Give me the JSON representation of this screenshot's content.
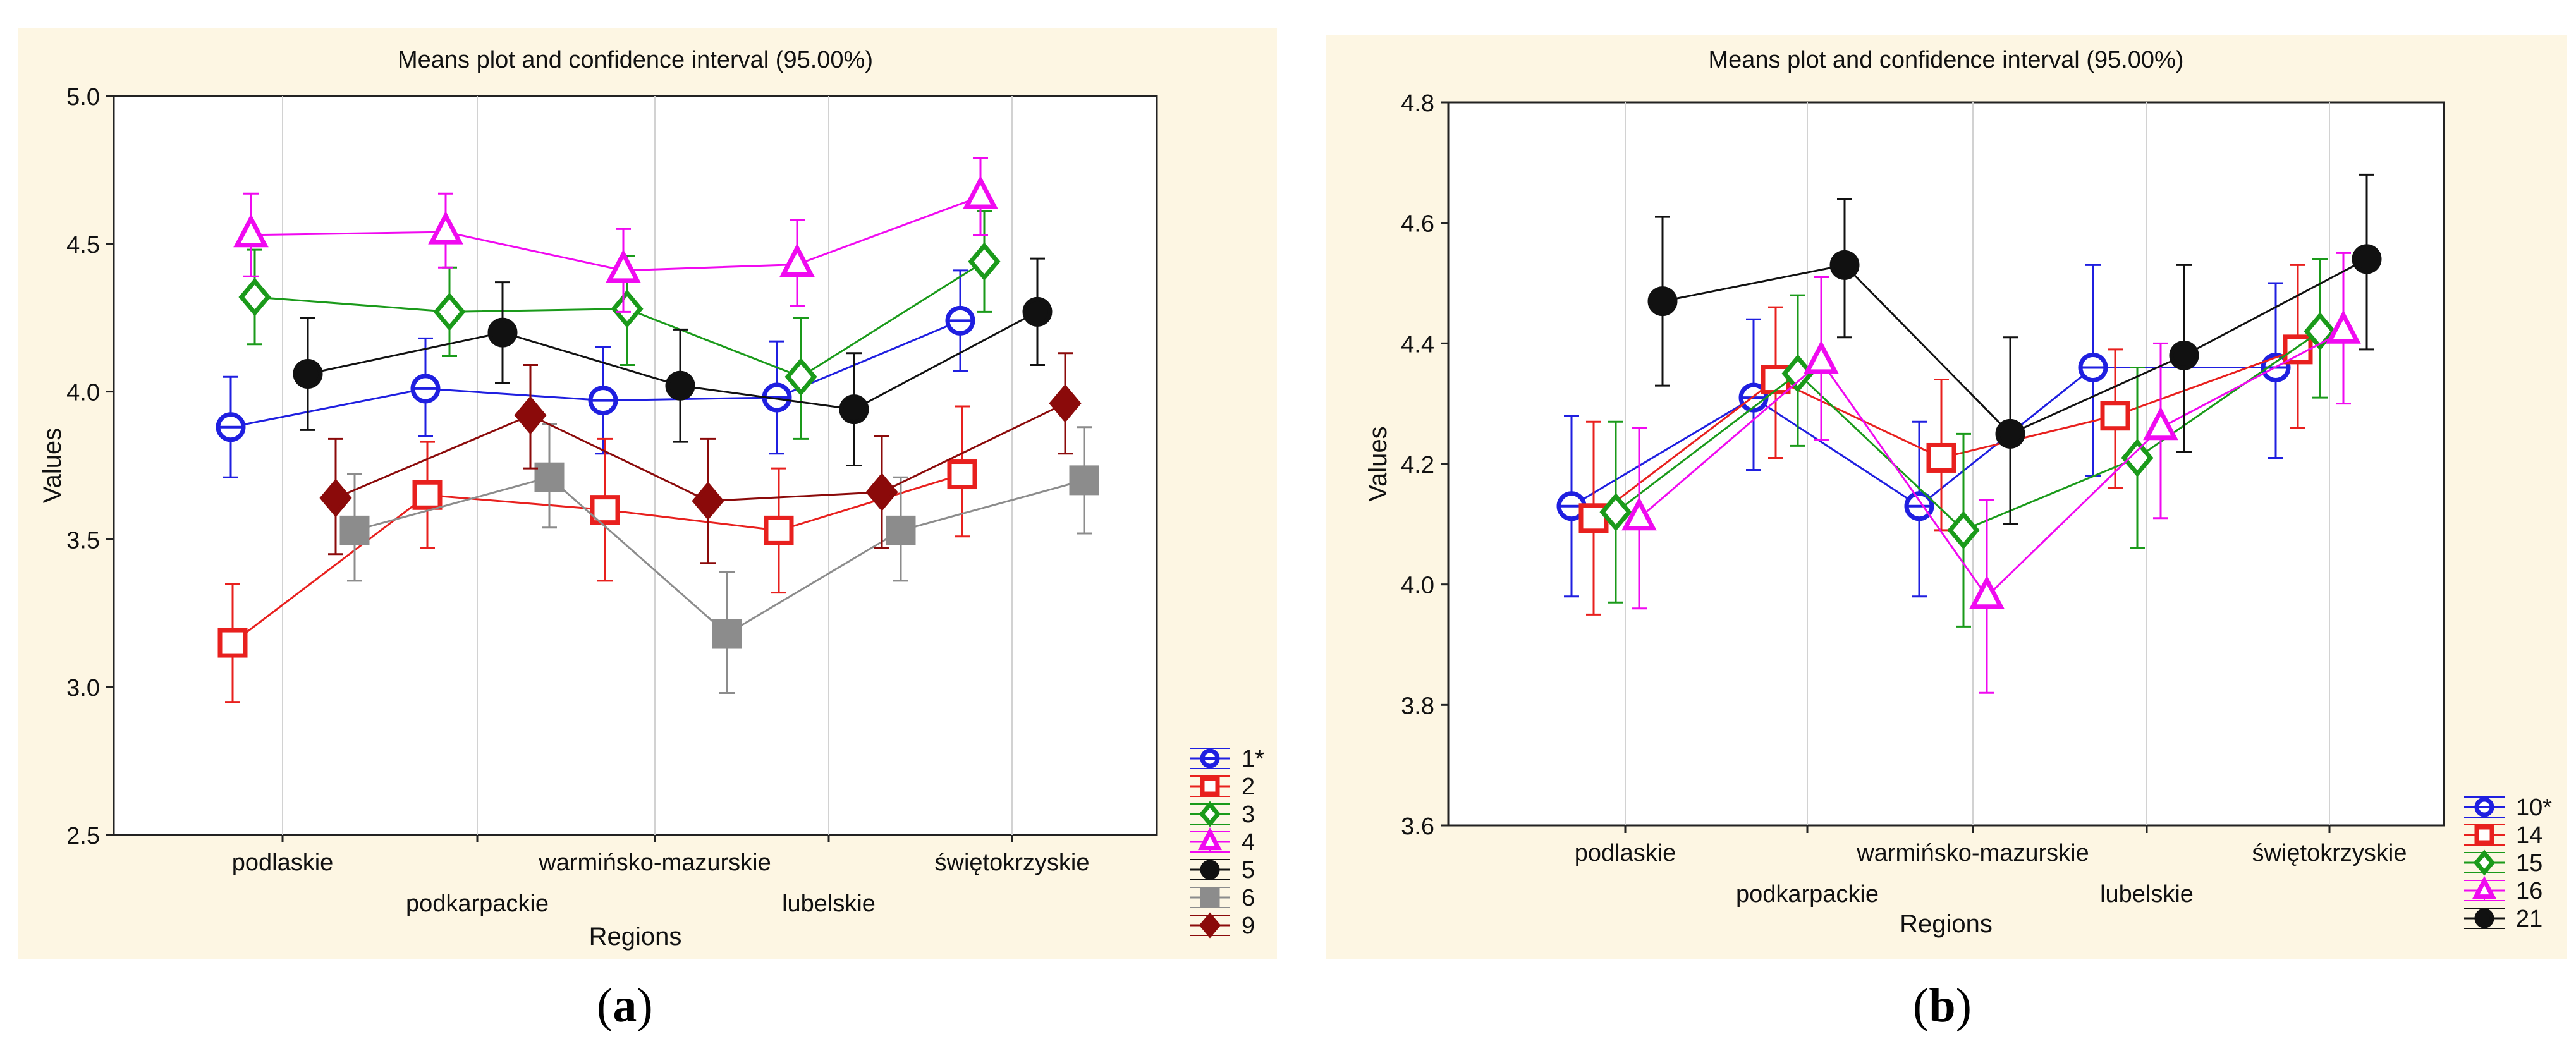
{
  "figure_labels": {
    "a": "a",
    "b": "b"
  },
  "chart_data": [
    {
      "id": "a",
      "type": "line",
      "title": "Means plot and confidence interval (95.00%)",
      "xlabel": "Regions",
      "ylabel": "Values",
      "ylim": [
        2.5,
        5.0
      ],
      "yticks": [
        "2.5",
        "3.0",
        "3.5",
        "4.0",
        "4.5",
        "5.0"
      ],
      "categories": [
        "podlaskie",
        "podkarpackie",
        "warmińsko-mazurskie",
        "lubelskie",
        "świętokrzyskie"
      ],
      "legend_position": "bottom-right",
      "series": [
        {
          "name": "1*",
          "color": "#1f1fe0",
          "marker": "circle",
          "offset": 1,
          "values": [
            3.88,
            4.01,
            3.97,
            3.98,
            4.24
          ],
          "lower": [
            3.71,
            3.85,
            3.79,
            3.79,
            4.07
          ],
          "upper": [
            4.05,
            4.18,
            4.15,
            4.17,
            4.41
          ]
        },
        {
          "name": "2",
          "color": "#e8201e",
          "marker": "square",
          "offset": 2,
          "values": [
            3.15,
            3.65,
            3.6,
            3.53,
            3.72
          ],
          "lower": [
            2.95,
            3.47,
            3.36,
            3.32,
            3.51
          ],
          "upper": [
            3.35,
            3.83,
            3.84,
            3.74,
            3.95
          ]
        },
        {
          "name": "3",
          "color": "#1a9a1a",
          "marker": "diamond",
          "offset": 0,
          "values": [
            4.32,
            4.27,
            4.28,
            4.05,
            4.44
          ],
          "lower": [
            4.16,
            4.12,
            4.09,
            3.84,
            4.27
          ],
          "upper": [
            4.48,
            4.42,
            4.46,
            4.25,
            4.61
          ]
        },
        {
          "name": "4",
          "color": "#f00af0",
          "marker": "triangle",
          "offset": 0,
          "values": [
            4.53,
            4.54,
            4.41,
            4.43,
            4.66
          ],
          "lower": [
            4.39,
            4.42,
            4.27,
            4.29,
            4.53
          ],
          "upper": [
            4.67,
            4.67,
            4.55,
            4.58,
            4.79
          ]
        },
        {
          "name": "5",
          "color": "#111111",
          "marker": "filled-circle",
          "offset": 0,
          "values": [
            4.06,
            4.2,
            4.02,
            3.94,
            4.27
          ],
          "lower": [
            3.87,
            4.03,
            3.83,
            3.75,
            4.09
          ],
          "upper": [
            4.25,
            4.37,
            4.21,
            4.13,
            4.45
          ]
        },
        {
          "name": "6",
          "color": "#8c8c8c",
          "marker": "filled-square",
          "offset": 0,
          "values": [
            3.53,
            3.71,
            3.18,
            3.53,
            3.7
          ],
          "lower": [
            3.36,
            3.54,
            2.98,
            3.36,
            3.52
          ],
          "upper": [
            3.72,
            3.89,
            3.39,
            3.71,
            3.88
          ]
        },
        {
          "name": "9",
          "color": "#8b0a0a",
          "marker": "filled-diamond",
          "offset": 0,
          "values": [
            3.64,
            3.92,
            3.63,
            3.66,
            3.96
          ],
          "lower": [
            3.45,
            3.74,
            3.42,
            3.47,
            3.79
          ],
          "upper": [
            3.84,
            4.09,
            3.84,
            3.85,
            4.13
          ]
        }
      ]
    },
    {
      "id": "b",
      "type": "line",
      "title": "Means plot and confidence interval (95.00%)",
      "xlabel": "Regions",
      "ylabel": "Values",
      "ylim": [
        3.6,
        4.8
      ],
      "yticks": [
        "3.6",
        "3.8",
        "4.0",
        "4.2",
        "4.4",
        "4.6",
        "4.8"
      ],
      "categories": [
        "podlaskie",
        "podkarpackie",
        "warmińsko-mazurskie",
        "lubelskie",
        "świętokrzyskie"
      ],
      "legend_position": "bottom-right",
      "series": [
        {
          "name": "10*",
          "color": "#1f1fe0",
          "marker": "circle",
          "values": [
            4.13,
            4.31,
            4.13,
            4.36,
            4.36
          ],
          "lower": [
            3.98,
            4.19,
            3.98,
            4.18,
            4.21
          ],
          "upper": [
            4.28,
            4.44,
            4.27,
            4.53,
            4.5
          ]
        },
        {
          "name": "14",
          "color": "#e8201e",
          "marker": "square",
          "values": [
            4.11,
            4.34,
            4.21,
            4.28,
            4.39
          ],
          "lower": [
            3.95,
            4.21,
            4.09,
            4.16,
            4.26
          ],
          "upper": [
            4.27,
            4.46,
            4.34,
            4.39,
            4.53
          ]
        },
        {
          "name": "15",
          "color": "#1a9a1a",
          "marker": "diamond",
          "values": [
            4.12,
            4.35,
            4.09,
            4.21,
            4.42
          ],
          "lower": [
            3.97,
            4.23,
            3.93,
            4.06,
            4.31
          ],
          "upper": [
            4.27,
            4.48,
            4.25,
            4.36,
            4.54
          ]
        },
        {
          "name": "16",
          "color": "#f00af0",
          "marker": "triangle",
          "values": [
            4.11,
            4.37,
            3.98,
            4.26,
            4.42
          ],
          "lower": [
            3.96,
            4.24,
            3.82,
            4.11,
            4.3
          ],
          "upper": [
            4.26,
            4.51,
            4.14,
            4.4,
            4.55
          ]
        },
        {
          "name": "21",
          "color": "#111111",
          "marker": "filled-circle",
          "values": [
            4.47,
            4.53,
            4.25,
            4.38,
            4.54
          ],
          "lower": [
            4.33,
            4.41,
            4.1,
            4.22,
            4.39
          ],
          "upper": [
            4.61,
            4.64,
            4.41,
            4.53,
            4.68
          ]
        }
      ]
    }
  ]
}
